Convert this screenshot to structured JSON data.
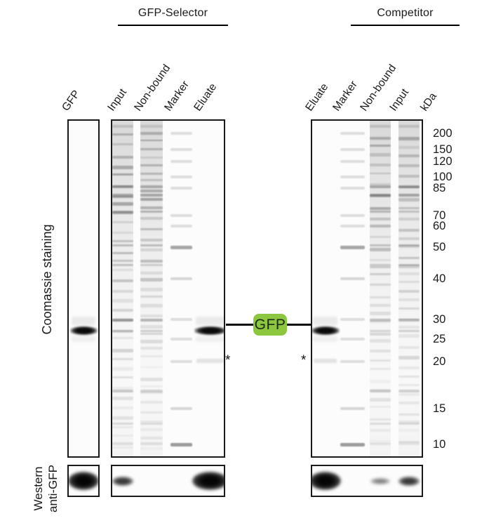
{
  "header": {
    "group_left": "GFP-Selector",
    "group_right": "Competitor"
  },
  "side_labels": {
    "coomassie": "Coomassie staining",
    "western": [
      "Western",
      "anti-GFP"
    ]
  },
  "lanes": {
    "left": [
      "GFP",
      "Input",
      "Non-bound",
      "Marker",
      "Eluate"
    ],
    "right": [
      "Eluate",
      "Marker",
      "Non-bound",
      "Input"
    ],
    "unit": "kDa"
  },
  "ladder": {
    "unit": "kDa",
    "values": [
      200,
      150,
      120,
      100,
      85,
      70,
      60,
      50,
      40,
      30,
      25,
      20,
      15,
      10
    ]
  },
  "annotations": {
    "gfp_badge": {
      "label": "GFP",
      "fill": "#8dc63f",
      "text": "#1c2b10"
    },
    "asterisk": "*"
  },
  "gel_data": {
    "coomassie_panels": [
      {
        "name": "gfp-control",
        "lanes": [
          {
            "label": "GFP",
            "type": "pure",
            "bands_kda": [
              {
                "kda": 27,
                "intensity": "strong"
              }
            ]
          }
        ]
      },
      {
        "name": "gfp-selector",
        "lanes": [
          {
            "label": "Input",
            "type": "lysate"
          },
          {
            "label": "Non-bound",
            "type": "lysate"
          },
          {
            "label": "Marker",
            "type": "marker"
          },
          {
            "label": "Eluate",
            "type": "eluate",
            "bands_kda": [
              {
                "kda": 27,
                "intensity": "strong"
              },
              {
                "kda": 20,
                "intensity": "faint",
                "note": "*"
              }
            ]
          }
        ]
      },
      {
        "name": "competitor",
        "lanes": [
          {
            "label": "Eluate",
            "type": "eluate",
            "bands_kda": [
              {
                "kda": 27,
                "intensity": "strong"
              },
              {
                "kda": 20,
                "intensity": "faint",
                "note": "*"
              }
            ]
          },
          {
            "label": "Marker",
            "type": "marker"
          },
          {
            "label": "Non-bound",
            "type": "lysate"
          },
          {
            "label": "Input",
            "type": "lysate"
          }
        ]
      }
    ],
    "western_panels": [
      {
        "name": "gfp-control",
        "bands": [
          {
            "lane": "GFP",
            "intensity": "strong"
          }
        ]
      },
      {
        "name": "gfp-selector",
        "bands": [
          {
            "lane": "Input",
            "intensity": "medium"
          },
          {
            "lane": "Eluate",
            "intensity": "strong"
          }
        ]
      },
      {
        "name": "competitor",
        "bands": [
          {
            "lane": "Eluate",
            "intensity": "strong"
          },
          {
            "lane": "Non-bound",
            "intensity": "faint"
          },
          {
            "lane": "Input",
            "intensity": "medium"
          }
        ]
      }
    ]
  }
}
